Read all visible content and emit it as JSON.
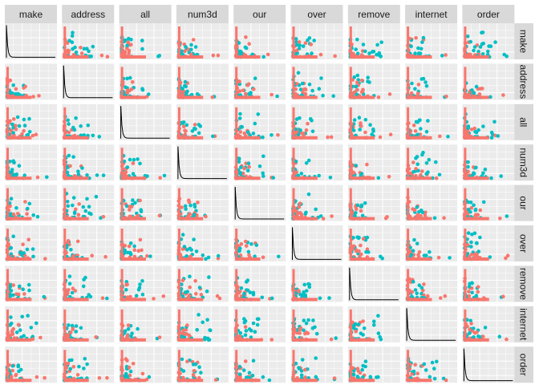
{
  "chart_data": {
    "type": "scatter",
    "layout": "pairs-matrix",
    "variables": [
      "make",
      "address",
      "all",
      "num3d",
      "our",
      "over",
      "remove",
      "internet",
      "order"
    ],
    "diagonal": "histogram",
    "grid": true,
    "legend": "none",
    "colors": {
      "group_a": "#f8766d",
      "group_b": "#00bfc4",
      "hist": "#000000",
      "panel_bg": "#ebebeb",
      "strip_bg": "#d9d9d9"
    }
  }
}
